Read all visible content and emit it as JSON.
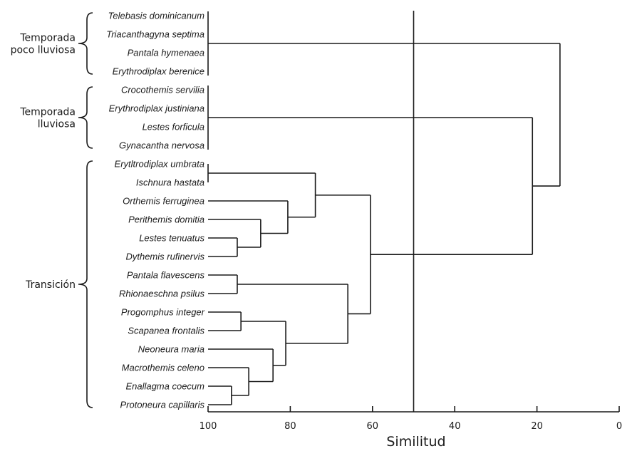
{
  "chart_data": {
    "type": "dendrogram",
    "orientation": "leaves-left, root-right",
    "xlabel": "Similitud",
    "xlim": [
      100,
      0
    ],
    "xticks": [
      100,
      80,
      60,
      40,
      20,
      0
    ],
    "grid": false,
    "cut_line": {
      "similarity": 50
    },
    "line_color": "#1a1a1a",
    "leaves": [
      "Telebasis dominicanum",
      "Triacanthagyna septima",
      "Pantala hymenaea",
      "Erythrodiplax berenice",
      "Crocothemis servilia",
      "Erythrodiplax justiniana",
      "Lestes forficula",
      "Gynacantha nervosa",
      "Erytltrodiplax umbrata",
      "Ischnura hastata",
      "Orthemis ferruginea",
      "Perithemis domitia",
      "Lestes tenuatus",
      "Dythemis rufinervis",
      "Pantala flavescens",
      "Rhionaeschna psilus",
      "Progomphus integer",
      "Scapanea frontalis",
      "Neoneura maria",
      "Macrothemis celeno",
      "Enallagma coecum",
      "Protoneura capillaris"
    ],
    "merges": [
      {
        "id": "m0",
        "children": [
          "Telebasis dominicanum",
          "Triacanthagyna septima",
          "Pantala hymenaea",
          "Erythrodiplax berenice"
        ],
        "similarity": 100
      },
      {
        "id": "m1",
        "children": [
          "Crocothemis servilia",
          "Erythrodiplax justiniana",
          "Lestes forficula",
          "Gynacantha nervosa"
        ],
        "similarity": 100
      },
      {
        "id": "m2",
        "children": [
          "Erytltrodiplax umbrata",
          "Ischnura hastata"
        ],
        "similarity": 100
      },
      {
        "id": "m3",
        "children": [
          "Lestes tenuatus",
          "Dythemis rufinervis"
        ],
        "similarity": 92.9
      },
      {
        "id": "m4",
        "children": [
          "Perithemis domitia",
          "m3"
        ],
        "similarity": 87.2
      },
      {
        "id": "m5",
        "children": [
          "Orthemis ferruginea",
          "m4"
        ],
        "similarity": 80.6
      },
      {
        "id": "m6",
        "children": [
          "m2",
          "m5"
        ],
        "similarity": 73.9
      },
      {
        "id": "m7",
        "children": [
          "Pantala flavescens",
          "Rhionaeschna psilus"
        ],
        "similarity": 92.9
      },
      {
        "id": "m8",
        "children": [
          "Progomphus integer",
          "Scapanea frontalis"
        ],
        "similarity": 92.0
      },
      {
        "id": "m9",
        "children": [
          "Enallagma coecum",
          "Protoneura capillaris"
        ],
        "similarity": 94.3
      },
      {
        "id": "m10",
        "children": [
          "Macrothemis celeno",
          "m9"
        ],
        "similarity": 90.1
      },
      {
        "id": "m11",
        "children": [
          "Neoneura maria",
          "m10"
        ],
        "similarity": 84.2
      },
      {
        "id": "m12",
        "children": [
          "m8",
          "m11"
        ],
        "similarity": 81.1
      },
      {
        "id": "m13",
        "children": [
          "m7",
          "m12"
        ],
        "similarity": 66.0
      },
      {
        "id": "m14",
        "children": [
          "m6",
          "m13"
        ],
        "similarity": 60.5
      },
      {
        "id": "m15",
        "children": [
          "m1",
          "m14"
        ],
        "similarity": 21.1
      },
      {
        "id": "m16",
        "children": [
          "m0",
          "m15"
        ],
        "similarity": 14.4
      }
    ],
    "groups": [
      {
        "label_lines": [
          "Temporada",
          "poco lluviosa"
        ],
        "from": "Telebasis dominicanum",
        "to": "Erythrodiplax berenice"
      },
      {
        "label_lines": [
          "Temporada",
          "lluviosa"
        ],
        "from": "Crocothemis servilia",
        "to": "Gynacantha nervosa"
      },
      {
        "label_lines": [
          "Transición"
        ],
        "from": "Erytltrodiplax umbrata",
        "to": "Protoneura capillaris"
      }
    ]
  }
}
